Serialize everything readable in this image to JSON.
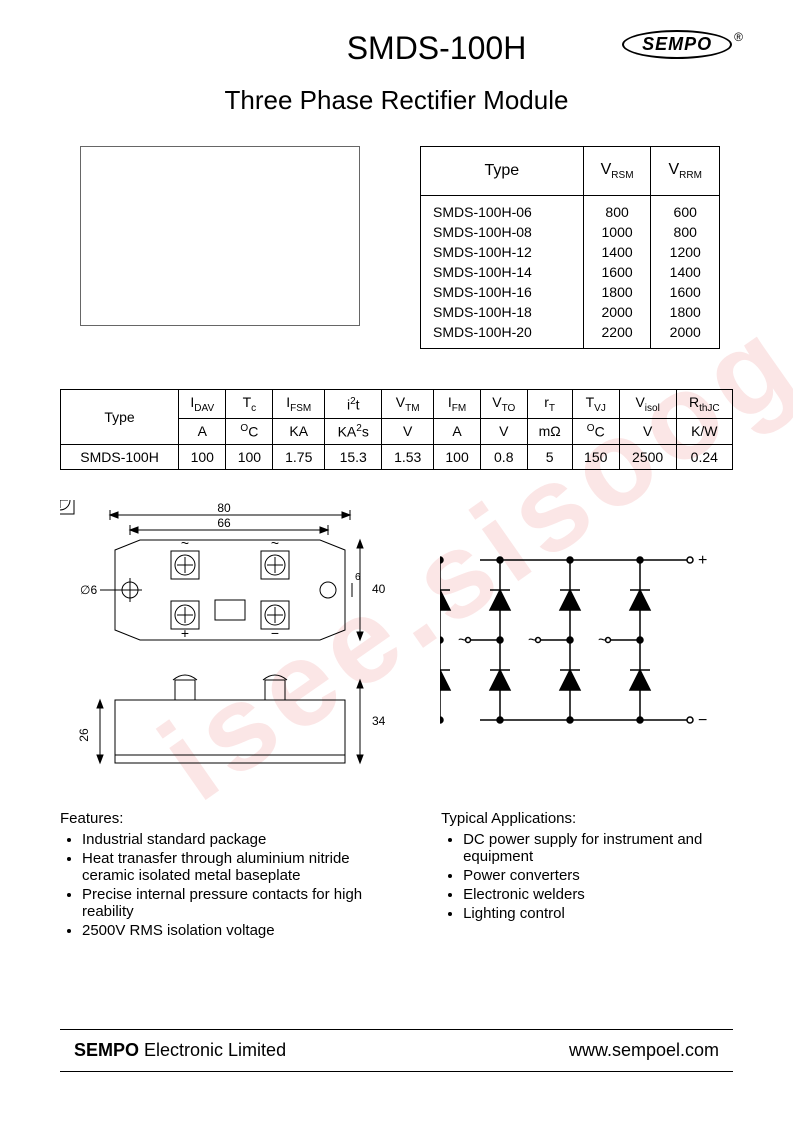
{
  "header": {
    "model": "SMDS-100H",
    "brand": "SEMPO",
    "registered": "®",
    "subtitle": "Three Phase Rectifier  Module"
  },
  "watermark": "isee.sisoog.com",
  "voltage_table": {
    "headers": {
      "type": "Type",
      "vrsm": "V",
      "vrsm_sub": "RSM",
      "vrrm": "V",
      "vrrm_sub": "RRM"
    },
    "rows": [
      {
        "type": "SMDS-100H-06",
        "vrsm": "800",
        "vrrm": "600"
      },
      {
        "type": "SMDS-100H-08",
        "vrsm": "1000",
        "vrrm": "800"
      },
      {
        "type": "SMDS-100H-12",
        "vrsm": "1400",
        "vrrm": "1200"
      },
      {
        "type": "SMDS-100H-14",
        "vrsm": "1600",
        "vrrm": "1400"
      },
      {
        "type": "SMDS-100H-16",
        "vrsm": "1800",
        "vrrm": "1600"
      },
      {
        "type": "SMDS-100H-18",
        "vrsm": "2000",
        "vrrm": "1800"
      },
      {
        "type": "SMDS-100H-20",
        "vrsm": "2200",
        "vrrm": "2000"
      }
    ]
  },
  "spec_table": {
    "row_label": "Type",
    "params": [
      {
        "sym_main": "I",
        "sym_sub": "DAV",
        "unit": "A"
      },
      {
        "sym_main": "T",
        "sym_sub": "c",
        "unit_pre": "O",
        "unit": "C"
      },
      {
        "sym_main": "I",
        "sym_sub": "FSM",
        "unit": "KA"
      },
      {
        "sym_main": "i",
        "sym_sup": "2",
        "sym_post": "t",
        "unit_pre2": "KA",
        "unit_sup": "2",
        "unit_post": "s"
      },
      {
        "sym_main": "V",
        "sym_sub": "TM",
        "unit": "V"
      },
      {
        "sym_main": "I",
        "sym_sub": "FM",
        "unit": "A"
      },
      {
        "sym_main": "V",
        "sym_sub": "TO",
        "unit": "V"
      },
      {
        "sym_main": "r",
        "sym_sub": "T",
        "unit": "mΩ"
      },
      {
        "sym_main": "T",
        "sym_sub": "VJ",
        "unit_pre": "O",
        "unit": "C"
      },
      {
        "sym_main": "V",
        "sym_sub": "isol",
        "unit": "V"
      },
      {
        "sym_main": "R",
        "sym_sub": "thJC",
        "unit": "K/W"
      }
    ],
    "data_row": {
      "type": "SMDS-100H",
      "values": [
        "100",
        "100",
        "1.75",
        "15.3",
        "1.53",
        "100",
        "0.8",
        "5",
        "150",
        "2500",
        "0.24"
      ]
    }
  },
  "mechanical": {
    "dim_80": "80",
    "dim_66": "66",
    "dim_40": "40",
    "dim_6": "6",
    "dia_6": "∅6",
    "dim_34": "34",
    "dim_26": "26",
    "terminal_ac": "~",
    "terminal_plus": "+",
    "terminal_minus": "−"
  },
  "schematic": {
    "plus": "+",
    "minus": "−",
    "ac": "~"
  },
  "features": {
    "title": "Features:",
    "items": [
      "Industrial standard package",
      "Heat tranasfer through aluminium nitride ceramic isolated metal baseplate",
      "Precise internal pressure contacts for high reability",
      "2500V RMS isolation voltage"
    ]
  },
  "applications": {
    "title": "Typical Applications:",
    "items": [
      "DC power supply for instrument and equipment",
      "Power converters",
      "Electronic welders",
      "Lighting control"
    ]
  },
  "footer": {
    "brand": "SEMPO",
    "company_suffix": " Electronic Limited",
    "url": "www.sempoel.com"
  }
}
